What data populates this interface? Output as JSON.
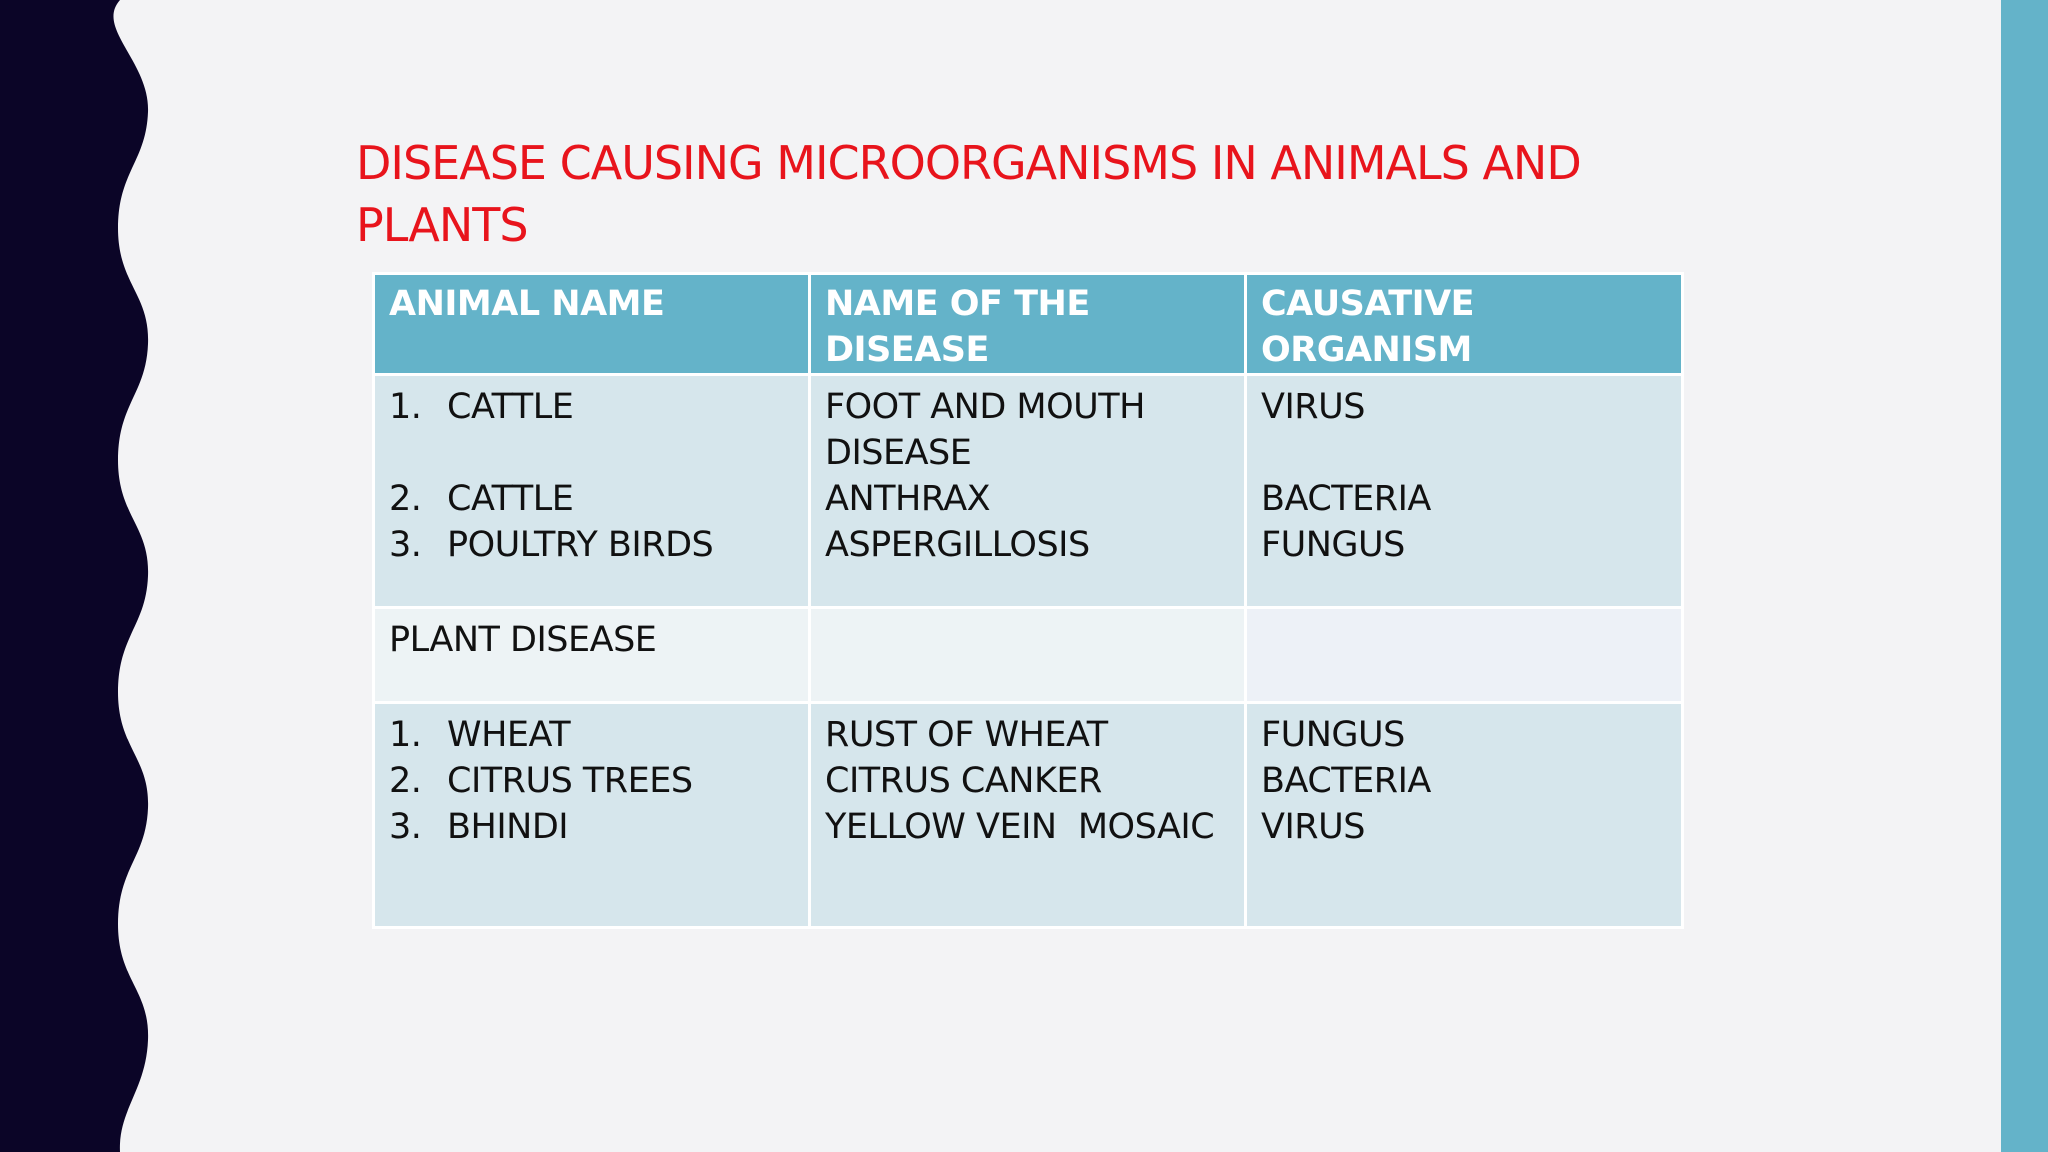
{
  "title": "DISEASE CAUSING MICROORGANISMS IN ANIMALS AND PLANTS",
  "table": {
    "headers": [
      "ANIMAL NAME",
      "NAME OF THE DISEASE",
      "CAUSATIVE ORGANISM"
    ],
    "header_lines": [
      [
        "ANIMAL NAME"
      ],
      [
        "NAME OF THE",
        "DISEASE"
      ],
      [
        "CAUSATIVE",
        "ORGANISM"
      ]
    ],
    "animal_rows": [
      {
        "num": "1.",
        "name": "CATTLE",
        "disease_lines": [
          "FOOT AND MOUTH",
          "DISEASE"
        ],
        "organism": "VIRUS"
      },
      {
        "num": "2.",
        "name": "CATTLE",
        "disease_lines": [
          "ANTHRAX"
        ],
        "organism": "BACTERIA"
      },
      {
        "num": "3.",
        "name": "POULTRY BIRDS",
        "disease_lines": [
          "ASPERGILLOSIS"
        ],
        "organism": "FUNGUS"
      }
    ],
    "section_label": "PLANT DISEASE",
    "plant_rows": [
      {
        "num": "1.",
        "name": "WHEAT",
        "disease": "RUST OF WHEAT",
        "organism": "FUNGUS"
      },
      {
        "num": "2.",
        "name": "CITRUS TREES",
        "disease": "CITRUS CANKER",
        "organism": "BACTERIA"
      },
      {
        "num": "3.",
        "name": "BHINDI",
        "disease": "YELLOW VEIN  MOSAIC",
        "organism": "VIRUS"
      }
    ]
  },
  "colors": {
    "title": "#e8141c",
    "header_bg": "#64b3c9",
    "band_bg": "#d6e6ec",
    "light_bg": "#edf3f5",
    "left_decoration": "#0b0527",
    "right_band": "#64b3c9",
    "page_bg": "#f3f3f5"
  }
}
